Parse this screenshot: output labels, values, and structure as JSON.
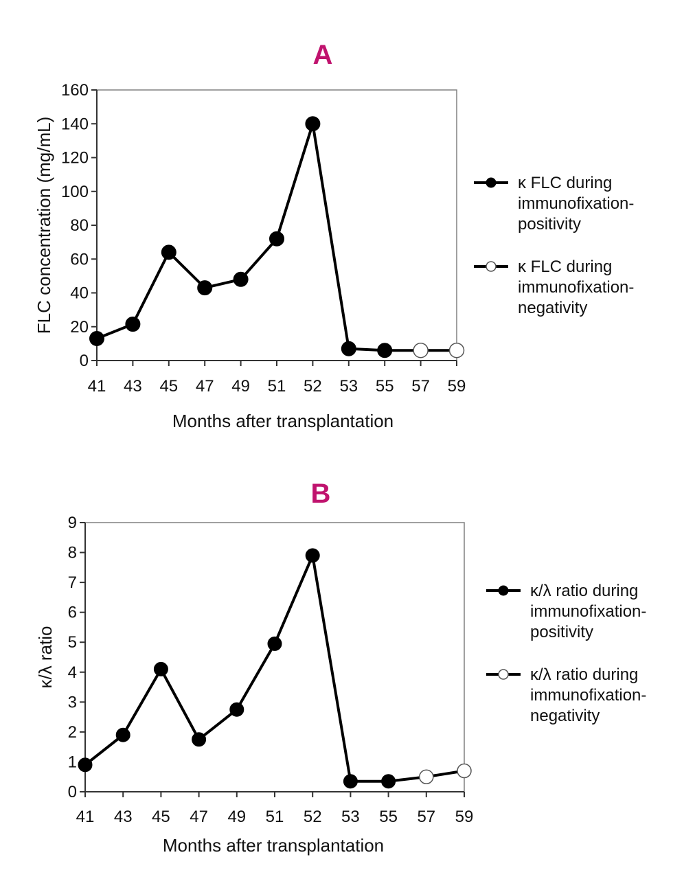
{
  "colors": {
    "title": "#c0136e",
    "line": "#000000",
    "axis": "#808080",
    "marker_open": "#ffffff"
  },
  "chart_data": [
    {
      "type": "line",
      "panel_label": "A",
      "title": "A",
      "xlabel": "Months after transplantation",
      "ylabel": "FLC concentration (mg/mL)",
      "categories": [
        "41",
        "43",
        "45",
        "47",
        "49",
        "51",
        "52",
        "53",
        "55",
        "57",
        "59"
      ],
      "ylim": [
        0,
        160
      ],
      "yticks": [
        0,
        20,
        40,
        60,
        80,
        100,
        120,
        140,
        160
      ],
      "values": [
        13,
        21.5,
        64,
        43,
        48,
        72,
        140,
        7,
        6,
        6,
        6
      ],
      "open_from_index": 9,
      "legend": [
        {
          "text": [
            "κ FLC during",
            "immunofixation-",
            "positivity"
          ],
          "marker": "filled"
        },
        {
          "text": [
            "κ FLC during",
            "immunofixation-",
            "negativity"
          ],
          "marker": "open"
        }
      ]
    },
    {
      "type": "line",
      "panel_label": "B",
      "title": "B",
      "xlabel": "Months after transplantation",
      "ylabel": "κ/λ ratio",
      "categories": [
        "41",
        "43",
        "45",
        "47",
        "49",
        "51",
        "52",
        "53",
        "55",
        "57",
        "59"
      ],
      "ylim": [
        0,
        9
      ],
      "yticks": [
        0,
        1,
        2,
        3,
        4,
        5,
        6,
        7,
        8,
        9
      ],
      "values": [
        0.9,
        1.9,
        4.1,
        1.75,
        2.75,
        4.95,
        7.9,
        0.35,
        0.35,
        0.5,
        0.7
      ],
      "open_from_index": 9,
      "legend": [
        {
          "text": [
            "κ/λ ratio during",
            "immunofixation-",
            "positivity"
          ],
          "marker": "filled"
        },
        {
          "text": [
            "κ/λ ratio during",
            "immunofixation-",
            "negativity"
          ],
          "marker": "open"
        }
      ]
    }
  ]
}
